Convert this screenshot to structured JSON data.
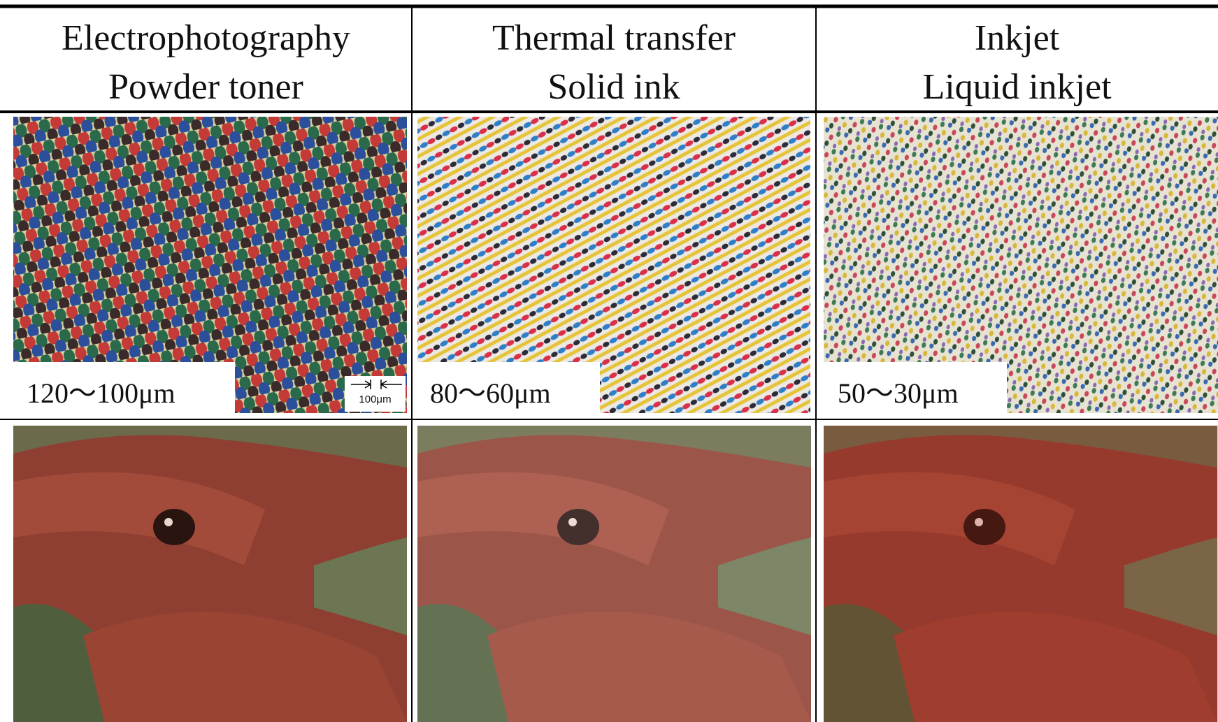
{
  "table": {
    "headers": [
      {
        "line1": "Electrophotography",
        "line2": "Powder toner"
      },
      {
        "line1": "Thermal transfer",
        "line2": "Solid ink"
      },
      {
        "line1": "Inkjet",
        "line2": "Liquid inkjet"
      }
    ],
    "dot_sizes": [
      "120～100μm",
      "80～60μm",
      "50～30μm"
    ],
    "scale_bar": "100μm"
  }
}
